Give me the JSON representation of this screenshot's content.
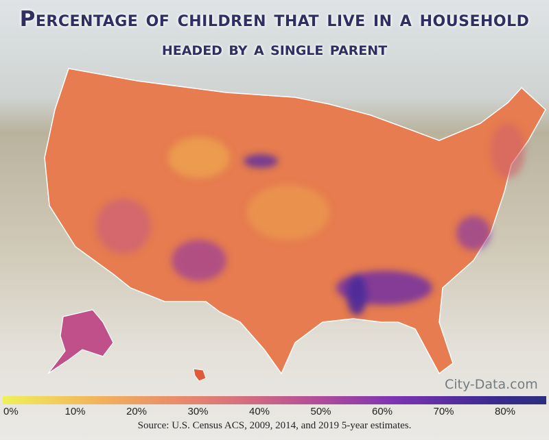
{
  "title": {
    "line1": "Percentage of children that live in a household",
    "line2": "headed by a single parent"
  },
  "legend": {
    "ticks": [
      "0%",
      "10%",
      "20%",
      "30%",
      "40%",
      "50%",
      "60%",
      "70%",
      "80%"
    ],
    "colors": {
      "low": "#f0f05a",
      "mid": "#d66f7e",
      "high": "#2c2e7e"
    }
  },
  "source": "Source: U.S. Census ACS, 2009, 2014, and 2019 5-year estimates.",
  "watermark": "City-Data.com",
  "map": {
    "region": "United States counties",
    "base_color": "#e67c4f",
    "high_color": "#6a2aa8"
  }
}
